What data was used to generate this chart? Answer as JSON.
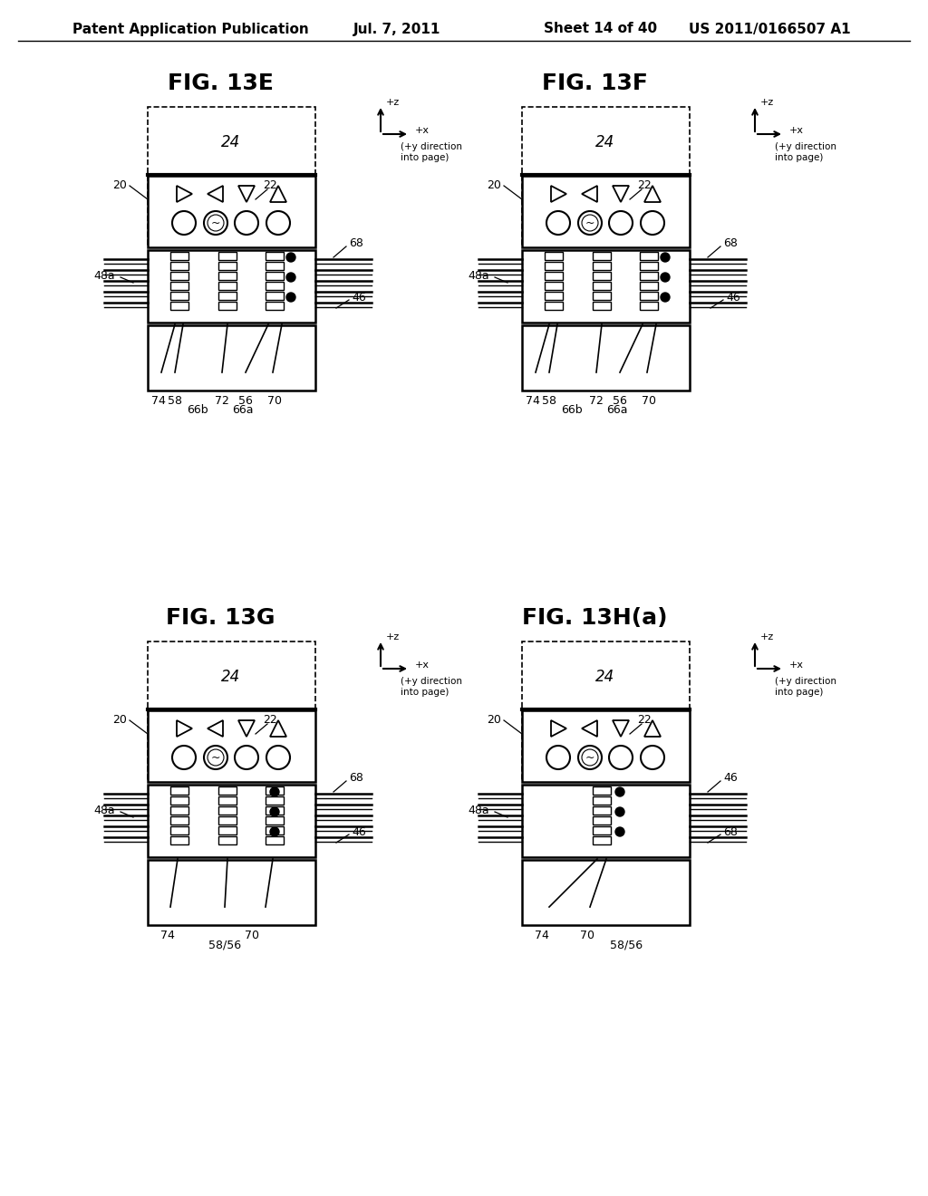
{
  "bg_color": "#ffffff",
  "header_text": "Patent Application Publication",
  "header_date": "Jul. 7, 2011",
  "header_sheet": "Sheet 14 of 40",
  "header_patent": "US 2011/0166507 A1",
  "fig_labels": [
    "FIG. 13E",
    "FIG. 13F",
    "FIG. 13G",
    "FIG. 13H(a)"
  ],
  "variants": [
    "E",
    "F",
    "G",
    "H"
  ]
}
